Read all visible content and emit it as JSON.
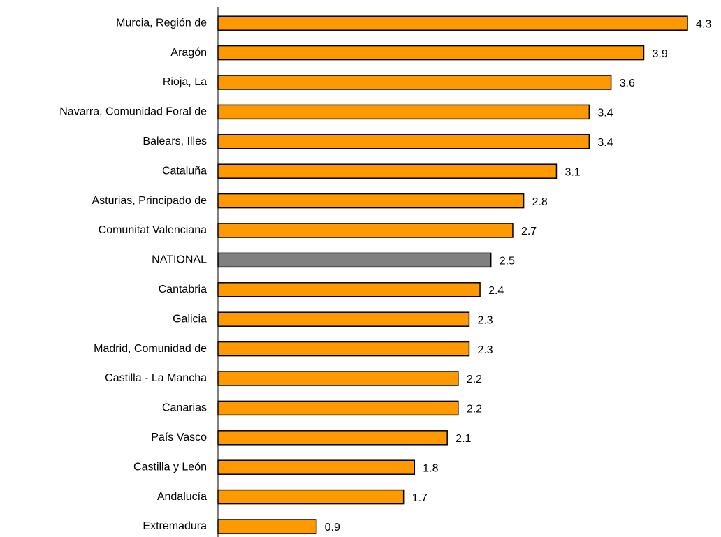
{
  "chart_data": {
    "type": "bar",
    "orientation": "horizontal",
    "categories": [
      "Murcia, Región de",
      "Aragón",
      "Rioja, La",
      "Navarra, Comunidad Foral de",
      "Balears, Illes",
      "Cataluña",
      "Asturias, Principado de",
      "Comunitat Valenciana",
      "NATIONAL",
      "Cantabria",
      "Galicia",
      "Madrid, Comunidad de",
      "Castilla - La Mancha",
      "Canarias",
      "País Vasco",
      "Castilla y León",
      "Andalucía",
      "Extremadura"
    ],
    "values": [
      4.3,
      3.9,
      3.6,
      3.4,
      3.4,
      3.1,
      2.8,
      2.7,
      2.5,
      2.4,
      2.3,
      2.3,
      2.2,
      2.2,
      2.1,
      1.8,
      1.7,
      0.9
    ],
    "colors": [
      "#ff9900",
      "#ff9900",
      "#ff9900",
      "#ff9900",
      "#ff9900",
      "#ff9900",
      "#ff9900",
      "#ff9900",
      "#808080",
      "#ff9900",
      "#ff9900",
      "#ff9900",
      "#ff9900",
      "#ff9900",
      "#ff9900",
      "#ff9900",
      "#ff9900",
      "#ff9900"
    ]
  }
}
